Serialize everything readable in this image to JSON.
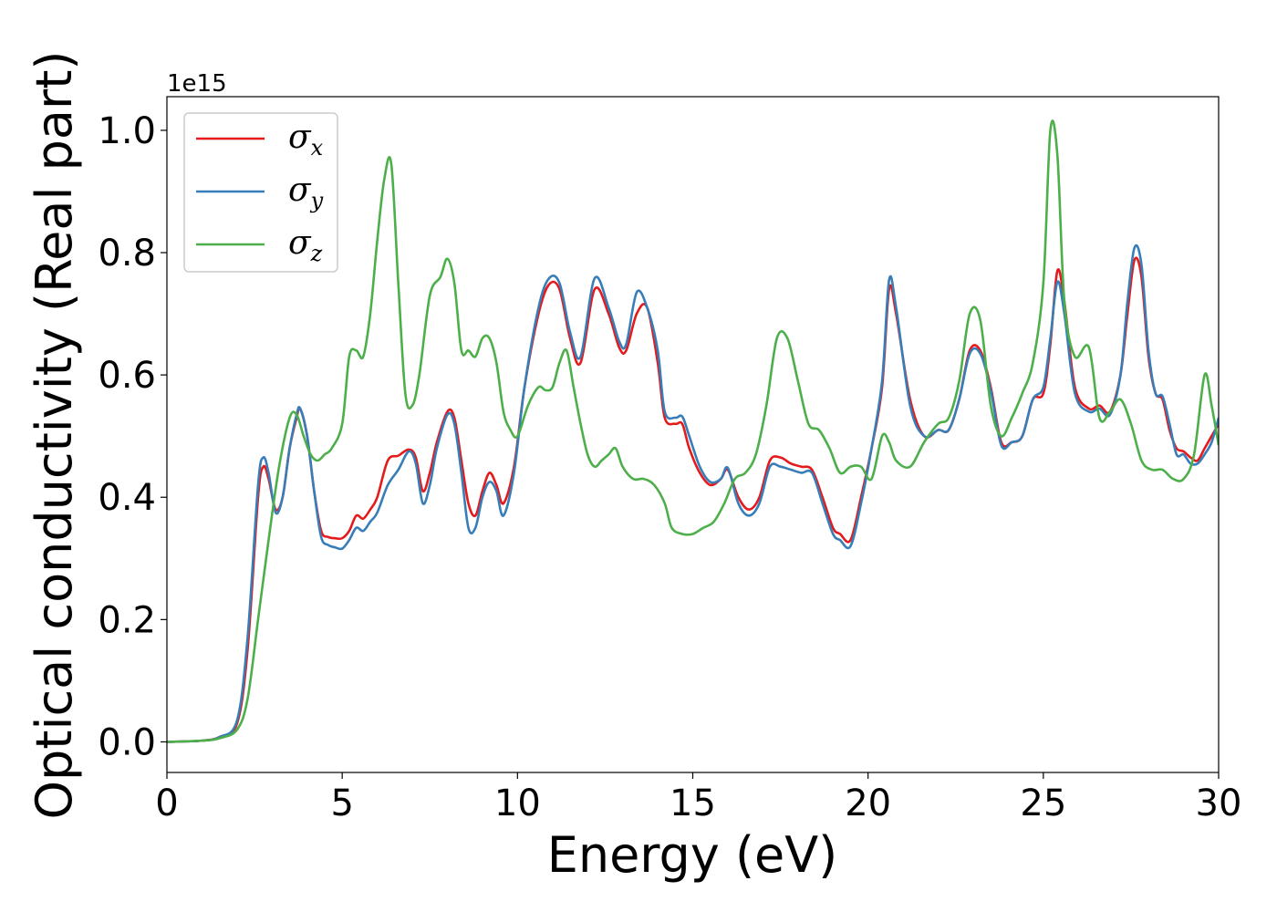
{
  "chart_data": {
    "type": "line",
    "title": "",
    "xlabel": "Energy (eV)",
    "ylabel": "Optical conductivity (Real part)",
    "y_offset_text": "1e15",
    "xlim": [
      0,
      30
    ],
    "ylim": [
      -0.05,
      1.055
    ],
    "xticks": [
      0,
      5,
      10,
      15,
      20,
      25,
      30
    ],
    "xtick_labels": [
      "0",
      "5",
      "10",
      "15",
      "20",
      "25",
      "30"
    ],
    "yticks": [
      0.0,
      0.2,
      0.4,
      0.6,
      0.8,
      1.0
    ],
    "ytick_labels": [
      "0.0",
      "0.2",
      "0.4",
      "0.6",
      "0.8",
      "1.0"
    ],
    "grid": false,
    "legend_position": "top-left",
    "series": [
      {
        "name": "σx",
        "legend_symbol": "σ",
        "legend_sub": "x",
        "color": "#e41a1c",
        "x": [
          0,
          1,
          1.5,
          2,
          2.3,
          2.6,
          2.75,
          2.9,
          3.1,
          3.3,
          3.5,
          3.7,
          3.8,
          4,
          4.2,
          4.4,
          4.6,
          4.8,
          5,
          5.2,
          5.4,
          5.6,
          5.8,
          6,
          6.3,
          6.6,
          6.9,
          7.1,
          7.3,
          7.5,
          7.7,
          8,
          8.2,
          8.4,
          8.6,
          8.8,
          9,
          9.2,
          9.4,
          9.6,
          9.9,
          10.2,
          10.6,
          10.9,
          11.2,
          11.5,
          11.8,
          12.2,
          12.6,
          12.9,
          13.1,
          13.4,
          13.7,
          14,
          14.2,
          14.5,
          14.7,
          14.9,
          15.2,
          15.5,
          15.8,
          16,
          16.3,
          16.6,
          16.9,
          17.2,
          17.5,
          17.8,
          18.1,
          18.4,
          18.7,
          19,
          19.2,
          19.5,
          19.8,
          20.1,
          20.4,
          20.6,
          20.8,
          21.2,
          21.6,
          22,
          22.3,
          22.6,
          22.9,
          23.2,
          23.5,
          23.8,
          24.1,
          24.4,
          24.7,
          25,
          25.2,
          25.4,
          25.6,
          25.9,
          26.3,
          26.6,
          26.9,
          27.2,
          27.4,
          27.6,
          27.8,
          28,
          28.2,
          28.4,
          28.6,
          28.8,
          29,
          29.2,
          29.4,
          29.6,
          29.8,
          30
        ],
        "y": [
          0,
          0.002,
          0.008,
          0.03,
          0.15,
          0.4,
          0.45,
          0.43,
          0.38,
          0.4,
          0.48,
          0.53,
          0.545,
          0.5,
          0.41,
          0.345,
          0.335,
          0.333,
          0.333,
          0.345,
          0.37,
          0.365,
          0.38,
          0.4,
          0.46,
          0.468,
          0.478,
          0.465,
          0.41,
          0.44,
          0.49,
          0.54,
          0.53,
          0.46,
          0.39,
          0.37,
          0.41,
          0.44,
          0.42,
          0.39,
          0.45,
          0.58,
          0.7,
          0.748,
          0.74,
          0.66,
          0.62,
          0.74,
          0.7,
          0.645,
          0.64,
          0.7,
          0.71,
          0.62,
          0.53,
          0.52,
          0.52,
          0.48,
          0.44,
          0.42,
          0.43,
          0.445,
          0.4,
          0.38,
          0.4,
          0.46,
          0.465,
          0.455,
          0.45,
          0.445,
          0.4,
          0.35,
          0.34,
          0.33,
          0.4,
          0.48,
          0.58,
          0.74,
          0.7,
          0.56,
          0.5,
          0.51,
          0.51,
          0.56,
          0.64,
          0.64,
          0.58,
          0.49,
          0.49,
          0.5,
          0.56,
          0.57,
          0.65,
          0.77,
          0.72,
          0.58,
          0.545,
          0.55,
          0.54,
          0.6,
          0.7,
          0.788,
          0.76,
          0.63,
          0.57,
          0.56,
          0.51,
          0.48,
          0.475,
          0.465,
          0.46,
          0.48,
          0.5,
          0.52
        ]
      },
      {
        "name": "σy",
        "legend_symbol": "σ",
        "legend_sub": "y",
        "color": "#377eb8",
        "x": [
          0,
          1,
          1.5,
          2,
          2.3,
          2.6,
          2.75,
          2.9,
          3.1,
          3.3,
          3.5,
          3.7,
          3.8,
          4,
          4.2,
          4.4,
          4.6,
          4.8,
          5,
          5.2,
          5.4,
          5.6,
          5.8,
          6,
          6.3,
          6.6,
          6.9,
          7.1,
          7.3,
          7.5,
          7.7,
          8,
          8.2,
          8.4,
          8.6,
          8.8,
          9,
          9.2,
          9.4,
          9.6,
          9.9,
          10.2,
          10.6,
          10.9,
          11.2,
          11.5,
          11.8,
          12.2,
          12.6,
          12.9,
          13.1,
          13.4,
          13.7,
          14,
          14.2,
          14.5,
          14.7,
          14.9,
          15.2,
          15.5,
          15.8,
          16,
          16.3,
          16.6,
          16.9,
          17.2,
          17.5,
          17.8,
          18.1,
          18.4,
          18.7,
          19,
          19.2,
          19.5,
          19.8,
          20.1,
          20.4,
          20.6,
          20.8,
          21.2,
          21.6,
          22,
          22.3,
          22.6,
          22.9,
          23.2,
          23.5,
          23.8,
          24.1,
          24.4,
          24.7,
          25,
          25.2,
          25.4,
          25.6,
          25.9,
          26.3,
          26.6,
          26.9,
          27.2,
          27.4,
          27.6,
          27.8,
          28,
          28.2,
          28.4,
          28.6,
          28.8,
          29,
          29.2,
          29.4,
          29.6,
          29.8,
          30
        ],
        "y": [
          0,
          0.002,
          0.008,
          0.035,
          0.17,
          0.42,
          0.465,
          0.44,
          0.375,
          0.4,
          0.48,
          0.535,
          0.545,
          0.5,
          0.41,
          0.335,
          0.322,
          0.318,
          0.316,
          0.33,
          0.35,
          0.345,
          0.36,
          0.375,
          0.42,
          0.445,
          0.475,
          0.455,
          0.39,
          0.42,
          0.48,
          0.535,
          0.52,
          0.44,
          0.35,
          0.35,
          0.4,
          0.425,
          0.41,
          0.37,
          0.44,
          0.58,
          0.71,
          0.758,
          0.75,
          0.67,
          0.63,
          0.758,
          0.71,
          0.655,
          0.65,
          0.735,
          0.71,
          0.64,
          0.54,
          0.53,
          0.532,
          0.5,
          0.45,
          0.425,
          0.43,
          0.448,
          0.39,
          0.37,
          0.39,
          0.45,
          0.45,
          0.445,
          0.44,
          0.44,
          0.39,
          0.34,
          0.33,
          0.32,
          0.39,
          0.48,
          0.59,
          0.755,
          0.71,
          0.55,
          0.5,
          0.51,
          0.51,
          0.56,
          0.635,
          0.635,
          0.575,
          0.485,
          0.49,
          0.5,
          0.56,
          0.58,
          0.66,
          0.752,
          0.7,
          0.57,
          0.54,
          0.545,
          0.535,
          0.6,
          0.72,
          0.808,
          0.78,
          0.64,
          0.57,
          0.565,
          0.52,
          0.47,
          0.47,
          0.455,
          0.455,
          0.47,
          0.49,
          0.53
        ]
      },
      {
        "name": "σz",
        "legend_symbol": "σ",
        "legend_sub": "z",
        "color": "#4daf4a",
        "x": [
          0,
          1,
          1.5,
          2,
          2.3,
          2.6,
          2.9,
          3.2,
          3.5,
          3.7,
          3.9,
          4.1,
          4.3,
          4.5,
          4.7,
          5,
          5.2,
          5.4,
          5.6,
          5.8,
          6,
          6.2,
          6.4,
          6.6,
          6.8,
          7,
          7.2,
          7.5,
          7.8,
          8,
          8.2,
          8.4,
          8.6,
          8.8,
          9,
          9.2,
          9.4,
          9.6,
          9.8,
          10,
          10.3,
          10.6,
          10.8,
          11,
          11.2,
          11.4,
          11.6,
          11.8,
          12,
          12.2,
          12.4,
          12.6,
          12.8,
          13,
          13.3,
          13.6,
          13.9,
          14.2,
          14.4,
          14.7,
          15,
          15.3,
          15.6,
          15.9,
          16.2,
          16.5,
          16.8,
          17.1,
          17.4,
          17.7,
          18,
          18.3,
          18.6,
          18.9,
          19.2,
          19.5,
          19.8,
          20.1,
          20.4,
          20.6,
          20.8,
          21.2,
          21.6,
          22,
          22.3,
          22.6,
          22.9,
          23.2,
          23.5,
          23.8,
          24.1,
          24.4,
          24.7,
          25,
          25.2,
          25.4,
          25.6,
          25.9,
          26.3,
          26.6,
          26.9,
          27.2,
          27.5,
          27.8,
          28.1,
          28.4,
          28.7,
          29,
          29.3,
          29.6,
          29.8,
          30
        ],
        "y": [
          0,
          0.002,
          0.006,
          0.02,
          0.07,
          0.2,
          0.33,
          0.45,
          0.53,
          0.535,
          0.5,
          0.47,
          0.46,
          0.47,
          0.48,
          0.52,
          0.63,
          0.64,
          0.63,
          0.7,
          0.82,
          0.92,
          0.945,
          0.75,
          0.57,
          0.55,
          0.6,
          0.73,
          0.76,
          0.79,
          0.75,
          0.64,
          0.64,
          0.63,
          0.66,
          0.66,
          0.62,
          0.54,
          0.51,
          0.5,
          0.55,
          0.58,
          0.575,
          0.58,
          0.62,
          0.64,
          0.58,
          0.52,
          0.47,
          0.45,
          0.46,
          0.47,
          0.48,
          0.45,
          0.43,
          0.43,
          0.42,
          0.39,
          0.35,
          0.34,
          0.34,
          0.35,
          0.36,
          0.39,
          0.43,
          0.44,
          0.47,
          0.55,
          0.66,
          0.66,
          0.59,
          0.52,
          0.51,
          0.48,
          0.44,
          0.45,
          0.45,
          0.43,
          0.5,
          0.49,
          0.46,
          0.45,
          0.49,
          0.52,
          0.53,
          0.59,
          0.7,
          0.69,
          0.55,
          0.5,
          0.53,
          0.57,
          0.62,
          0.75,
          1.0,
          0.96,
          0.72,
          0.63,
          0.645,
          0.53,
          0.54,
          0.56,
          0.52,
          0.46,
          0.445,
          0.445,
          0.43,
          0.43,
          0.47,
          0.6,
          0.55,
          0.485
        ]
      }
    ]
  }
}
